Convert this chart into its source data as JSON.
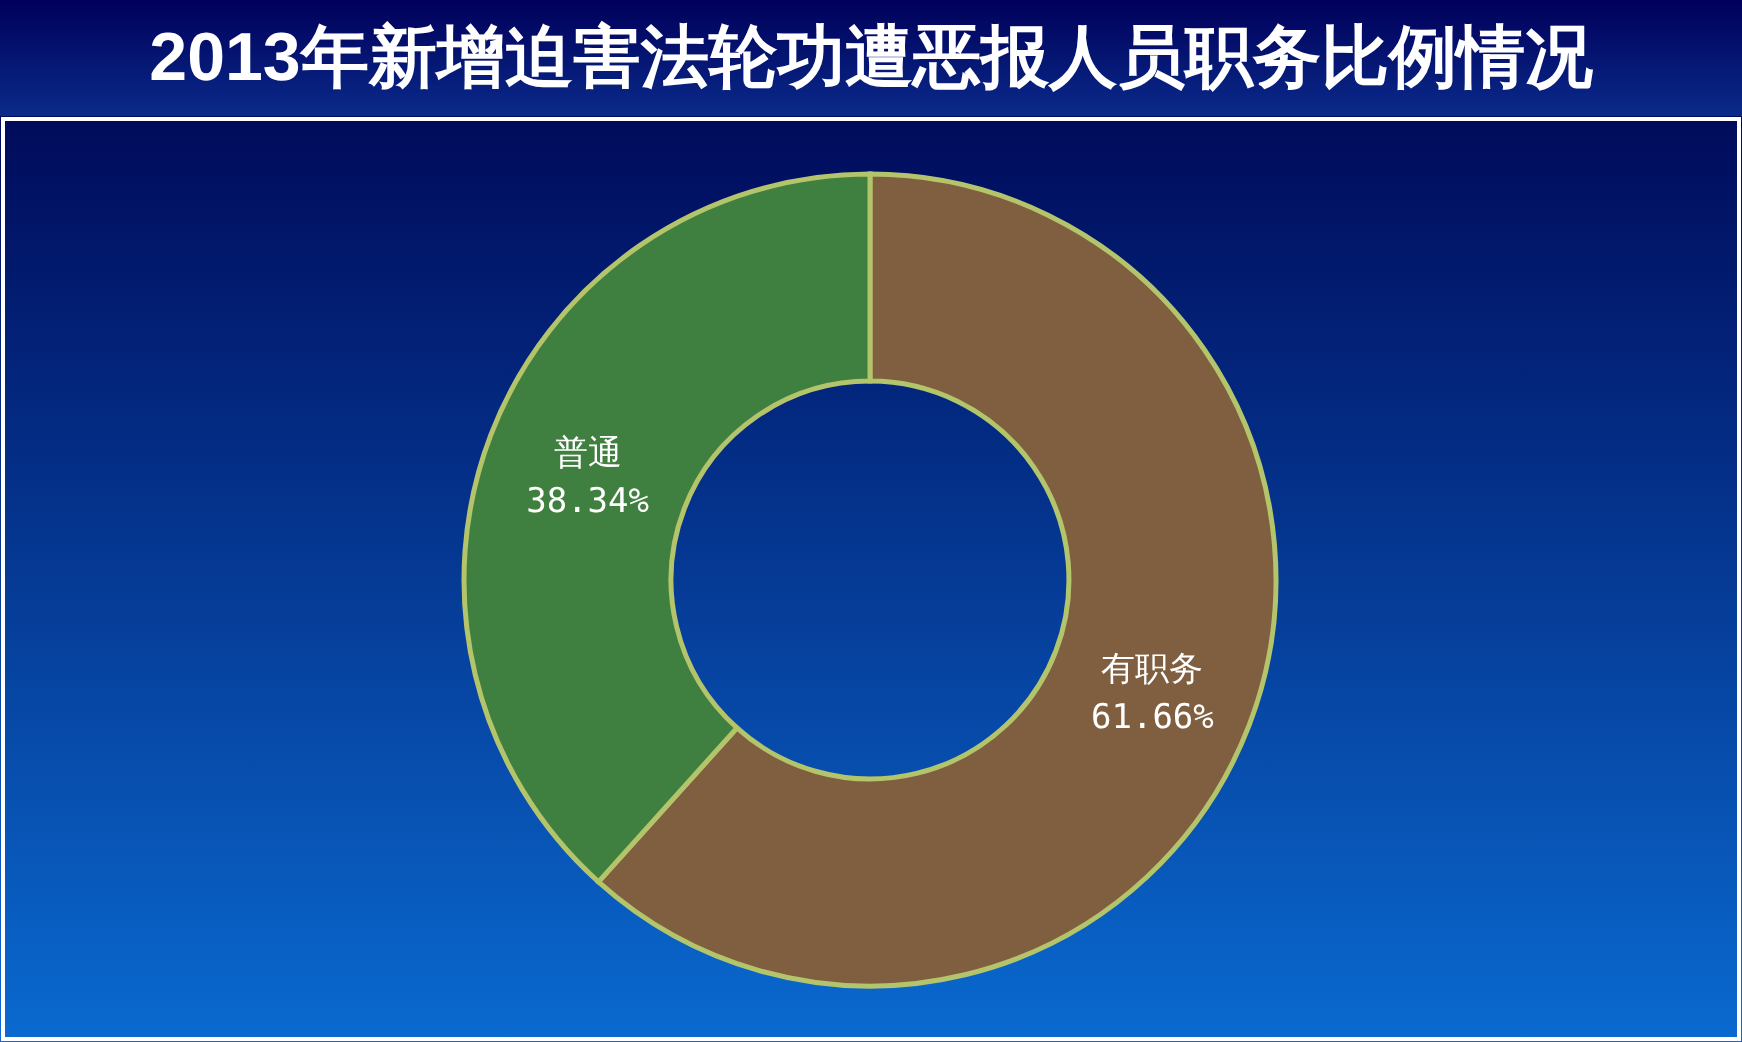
{
  "chart_data": {
    "type": "donut",
    "title": "2013年新增迫害法轮功遭恶报人员职务比例情况",
    "categories": [
      "有职务",
      "普通"
    ],
    "values": [
      61.66,
      38.34
    ],
    "colors": [
      "#7f5f3f",
      "#3f7f3f"
    ],
    "value_labels": [
      "61.66%",
      "38.34%"
    ]
  }
}
